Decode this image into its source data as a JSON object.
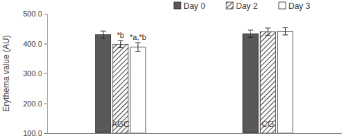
{
  "chart_data": {
    "type": "bar",
    "y_label": "Erythema value (AU)",
    "categories": [
      "AGC",
      "CG"
    ],
    "series": [
      {
        "name": "Day 0",
        "color": "#595959",
        "values": [
          430,
          433
        ],
        "errors": [
          12,
          12
        ]
      },
      {
        "name": "Day 2",
        "color": "#404040",
        "values": [
          398,
          440
        ],
        "errors": [
          12,
          12
        ],
        "annotations": [
          "*b",
          null
        ]
      },
      {
        "name": "Day 3",
        "color": "#ffffff",
        "values": [
          388,
          441
        ],
        "errors": [
          15,
          12
        ],
        "annotations": [
          "*a,*b",
          null
        ]
      }
    ],
    "ylim": [
      100,
      500
    ],
    "yticks": [
      {
        "value": 100,
        "label": "100.0"
      },
      {
        "value": 200,
        "label": "200.0"
      },
      {
        "value": 300,
        "label": "300.0"
      },
      {
        "value": 400,
        "label": "400.0"
      },
      {
        "value": 500,
        "label": "500.0"
      }
    ],
    "grid": false,
    "legend": "top"
  }
}
